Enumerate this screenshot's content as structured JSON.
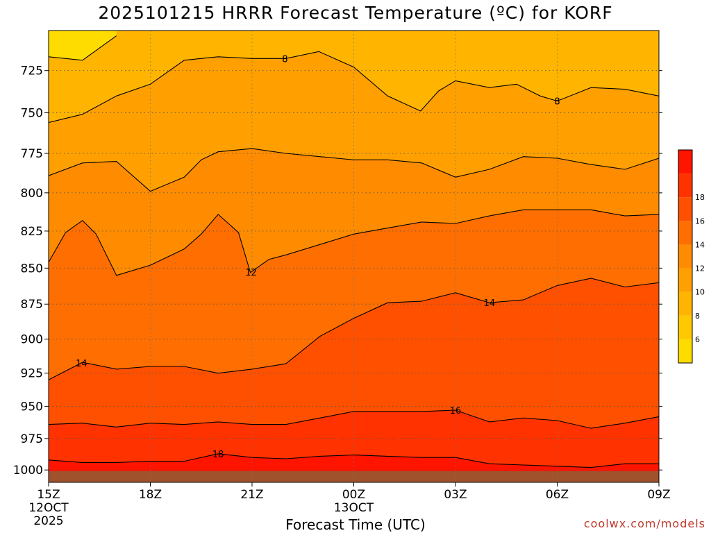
{
  "title": "2025101215 HRRR Forecast Temperature (ºC) for KORF",
  "xlabel": "Forecast Time (UTC)",
  "credit": "coolwx.com/models",
  "chart_data": {
    "type": "contour",
    "title": "2025101215 HRRR Forecast Temperature (ºC) for KORF",
    "xlabel": "Forecast Time (UTC)",
    "ylabel": "",
    "y_scale": "log",
    "ylim": [
      1010,
      702
    ],
    "x_hours": [
      15,
      33
    ],
    "y_ticks": [
      725,
      750,
      775,
      800,
      825,
      850,
      875,
      900,
      925,
      950,
      975,
      1000
    ],
    "x_ticks": [
      {
        "hour": 15,
        "lines": [
          "15Z",
          "12OCT",
          "2025"
        ]
      },
      {
        "hour": 18,
        "lines": [
          "18Z"
        ]
      },
      {
        "hour": 21,
        "lines": [
          "21Z"
        ]
      },
      {
        "hour": 24,
        "lines": [
          "00Z",
          "13OCT"
        ]
      },
      {
        "hour": 27,
        "lines": [
          "03Z"
        ]
      },
      {
        "hour": 30,
        "lines": [
          "06Z"
        ]
      },
      {
        "hour": 33,
        "lines": [
          "09Z"
        ]
      }
    ],
    "colorbar": {
      "levels": [
        4,
        6,
        8,
        10,
        12,
        14,
        16,
        18,
        20
      ],
      "tick_labels": [
        6,
        8,
        10,
        12,
        14,
        16,
        18
      ],
      "colors": [
        "#ffdc00",
        "#ffc800",
        "#ffb400",
        "#ffa000",
        "#ff8c00",
        "#ff6e00",
        "#ff5000",
        "#ff3200",
        "#ff1400"
      ]
    },
    "ground_color": "#a0522d",
    "contours": [
      {
        "level": 6,
        "points": [
          [
            15.0,
            717
          ],
          [
            16.0,
            719
          ],
          [
            17.0,
            705
          ]
        ]
      },
      {
        "level": 8,
        "label_at": 21.97,
        "points": [
          [
            15.0,
            756
          ],
          [
            16.0,
            751
          ],
          [
            17.0,
            740
          ],
          [
            18.0,
            733
          ],
          [
            19.0,
            719
          ],
          [
            20.0,
            717
          ],
          [
            21.0,
            718
          ],
          [
            22.0,
            718
          ],
          [
            22.97,
            714
          ],
          [
            24.0,
            723
          ],
          [
            25.0,
            740
          ],
          [
            25.97,
            749
          ],
          [
            26.5,
            737
          ],
          [
            27.0,
            731
          ],
          [
            28.0,
            735
          ],
          [
            28.8,
            733
          ],
          [
            29.5,
            740
          ],
          [
            30.0,
            743
          ],
          [
            31.0,
            735
          ],
          [
            32.0,
            736
          ],
          [
            33.0,
            740
          ]
        ]
      },
      {
        "level": 10,
        "points": [
          [
            15.0,
            789
          ],
          [
            16.0,
            781
          ],
          [
            17.0,
            780
          ],
          [
            18.0,
            799
          ],
          [
            19.0,
            790
          ],
          [
            19.5,
            779
          ],
          [
            20.0,
            774
          ],
          [
            21.0,
            772
          ],
          [
            22.0,
            775
          ],
          [
            23.0,
            777
          ],
          [
            24.0,
            779
          ],
          [
            25.0,
            779
          ],
          [
            26.0,
            781
          ],
          [
            27.0,
            790
          ],
          [
            28.0,
            785
          ],
          [
            29.0,
            777
          ],
          [
            30.0,
            778
          ],
          [
            31.0,
            782
          ],
          [
            32.0,
            785
          ],
          [
            33.0,
            778
          ]
        ]
      },
      {
        "level": 12,
        "label_at": 20.97,
        "points": [
          [
            15.0,
            846
          ],
          [
            15.5,
            826
          ],
          [
            16.0,
            818
          ],
          [
            16.4,
            827
          ],
          [
            17.0,
            855
          ],
          [
            18.0,
            848
          ],
          [
            19.0,
            837
          ],
          [
            19.5,
            827
          ],
          [
            20.0,
            814
          ],
          [
            20.6,
            826
          ],
          [
            20.95,
            853
          ],
          [
            21.5,
            844
          ],
          [
            22.0,
            841
          ],
          [
            23.0,
            834
          ],
          [
            24.0,
            827
          ],
          [
            25.0,
            823
          ],
          [
            26.0,
            819
          ],
          [
            27.0,
            820
          ],
          [
            28.0,
            815
          ],
          [
            29.0,
            811
          ],
          [
            30.0,
            811
          ],
          [
            31.0,
            811
          ],
          [
            32.0,
            815
          ],
          [
            33.0,
            814
          ]
        ]
      },
      {
        "level": 14,
        "label_at": 15.97,
        "label_at2": 28.0,
        "points": [
          [
            15.0,
            930
          ],
          [
            16.0,
            917
          ],
          [
            17.0,
            922
          ],
          [
            18.0,
            920
          ],
          [
            19.0,
            920
          ],
          [
            20.0,
            925
          ],
          [
            21.0,
            922
          ],
          [
            22.0,
            918
          ],
          [
            23.0,
            898
          ],
          [
            24.0,
            885
          ],
          [
            25.0,
            874
          ],
          [
            26.0,
            873
          ],
          [
            27.0,
            867
          ],
          [
            28.0,
            874
          ],
          [
            29.0,
            872
          ],
          [
            30.0,
            862
          ],
          [
            31.0,
            857
          ],
          [
            32.0,
            863
          ],
          [
            33.0,
            860
          ]
        ]
      },
      {
        "level": 16,
        "label_at": 27.0,
        "points": [
          [
            15.0,
            964
          ],
          [
            16.0,
            963
          ],
          [
            17.0,
            966
          ],
          [
            18.0,
            963
          ],
          [
            19.0,
            964
          ],
          [
            20.0,
            962
          ],
          [
            21.0,
            964
          ],
          [
            22.0,
            964
          ],
          [
            23.0,
            959
          ],
          [
            24.0,
            954
          ],
          [
            25.0,
            954
          ],
          [
            26.0,
            954
          ],
          [
            27.0,
            953
          ],
          [
            28.0,
            962
          ],
          [
            29.0,
            959
          ],
          [
            30.0,
            961
          ],
          [
            31.0,
            967
          ],
          [
            32.0,
            963
          ],
          [
            33.0,
            958
          ]
        ]
      },
      {
        "level": 18,
        "label_at": 20.0,
        "points": [
          [
            15.0,
            992
          ],
          [
            16.0,
            994
          ],
          [
            17.0,
            994
          ],
          [
            18.0,
            993
          ],
          [
            19.0,
            993
          ],
          [
            20.0,
            987
          ],
          [
            21.0,
            990
          ],
          [
            22.0,
            991
          ],
          [
            23.0,
            989
          ],
          [
            24.0,
            988
          ],
          [
            25.0,
            989
          ],
          [
            26.0,
            990
          ],
          [
            27.0,
            990
          ],
          [
            28.0,
            995
          ],
          [
            29.0,
            996
          ],
          [
            30.0,
            997
          ],
          [
            31.0,
            998
          ],
          [
            32.0,
            995
          ],
          [
            33.0,
            995
          ]
        ]
      }
    ]
  }
}
